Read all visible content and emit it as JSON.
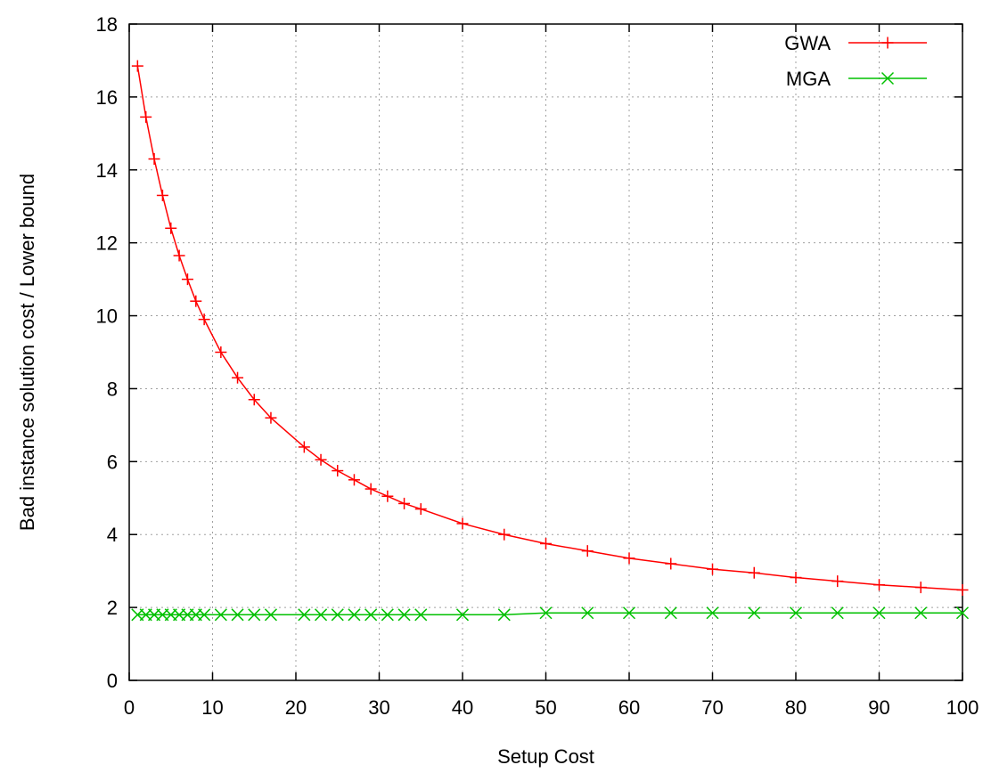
{
  "chart_data": {
    "type": "line",
    "title": "",
    "xlabel": "Setup Cost",
    "ylabel": "Bad instance solution cost / Lower bound",
    "xlim": [
      0,
      100
    ],
    "ylim": [
      0,
      18
    ],
    "xticks": [
      "0",
      "10",
      "20",
      "30",
      "40",
      "50",
      "60",
      "70",
      "80",
      "90",
      "100"
    ],
    "yticks": [
      "0",
      "2",
      "4",
      "6",
      "8",
      "10",
      "12",
      "14",
      "16",
      "18"
    ],
    "grid": true,
    "legend_position": "top-right",
    "series": [
      {
        "name": "GWA",
        "color": "#ff0000",
        "marker": "plus",
        "x": [
          1,
          2,
          3,
          4,
          5,
          6,
          7,
          8,
          9,
          11,
          13,
          15,
          17,
          21,
          23,
          25,
          27,
          29,
          31,
          33,
          35,
          40,
          45,
          50,
          55,
          60,
          65,
          70,
          75,
          80,
          85,
          90,
          95,
          100
        ],
        "y": [
          16.85,
          15.45,
          14.3,
          13.3,
          12.4,
          11.65,
          11.0,
          10.4,
          9.9,
          9.0,
          8.3,
          7.7,
          7.2,
          6.4,
          6.05,
          5.75,
          5.5,
          5.25,
          5.05,
          4.85,
          4.7,
          4.3,
          4.0,
          3.75,
          3.55,
          3.35,
          3.2,
          3.05,
          2.95,
          2.82,
          2.72,
          2.62,
          2.55,
          2.48
        ]
      },
      {
        "name": "MGA",
        "color": "#00c000",
        "marker": "cross",
        "x": [
          1,
          2,
          3,
          4,
          5,
          6,
          7,
          8,
          9,
          11,
          13,
          15,
          17,
          21,
          23,
          25,
          27,
          29,
          31,
          33,
          35,
          40,
          45,
          50,
          55,
          60,
          65,
          70,
          75,
          80,
          85,
          90,
          95,
          100
        ],
        "y": [
          1.8,
          1.8,
          1.8,
          1.8,
          1.8,
          1.8,
          1.8,
          1.8,
          1.8,
          1.8,
          1.8,
          1.8,
          1.8,
          1.8,
          1.8,
          1.8,
          1.8,
          1.8,
          1.8,
          1.8,
          1.8,
          1.8,
          1.8,
          1.85,
          1.85,
          1.85,
          1.85,
          1.85,
          1.85,
          1.85,
          1.85,
          1.85,
          1.85,
          1.85
        ]
      }
    ]
  }
}
